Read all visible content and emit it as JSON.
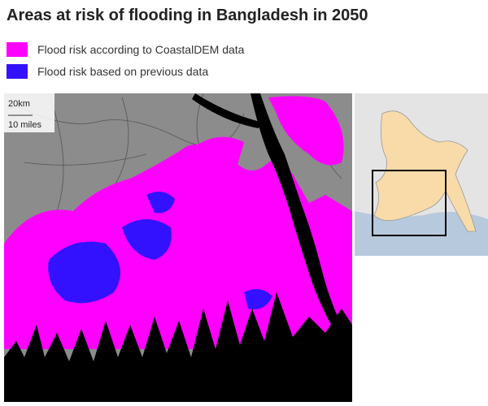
{
  "title": "Areas at risk of flooding in Bangladesh in 2050",
  "legend": [
    {
      "label": "Flood risk according to CoastalDEM data",
      "color": "#ff00ff"
    },
    {
      "label": "Flood risk based on previous data",
      "color": "#3311ff"
    }
  ],
  "scale": {
    "km": "20km",
    "miles": "10 miles"
  }
}
